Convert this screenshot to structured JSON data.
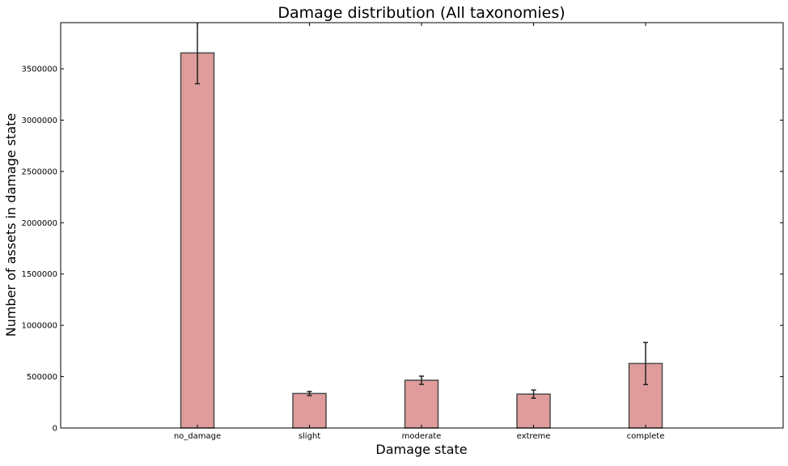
{
  "chart_data": {
    "type": "bar",
    "title": "Damage distribution (All taxonomies)",
    "xlabel": "Damage state",
    "ylabel": "Number of assets in damage state",
    "categories": [
      "no_damage",
      "slight",
      "moderate",
      "extreme",
      "complete"
    ],
    "series": [
      {
        "values": [
          3655000,
          336000,
          465000,
          330000,
          628000
        ],
        "errors": [
          300000,
          20000,
          40000,
          40000,
          205000
        ]
      }
    ],
    "ylim": [
      0,
      3950000
    ],
    "yticks": [
      0,
      500000,
      1000000,
      1500000,
      2000000,
      2500000,
      3000000,
      3500000
    ],
    "ytick_labels": [
      "0",
      "500000",
      "1000000",
      "1500000",
      "2000000",
      "2500000",
      "3000000",
      "3500000"
    ],
    "grid": false,
    "legend": "none",
    "colors": {
      "bar_fill": "#e09c9c",
      "bar_edge": "#4a4a4a",
      "error_bar": "#222222",
      "axis": "#000000"
    }
  }
}
